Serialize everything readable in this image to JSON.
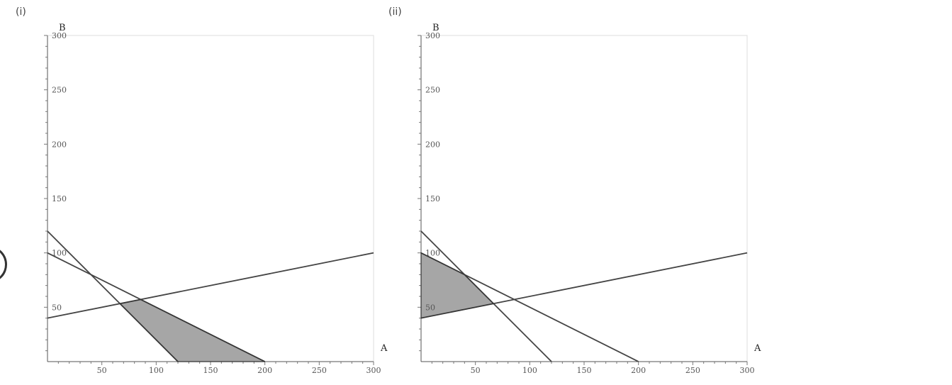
{
  "panels": [
    {
      "label": "(i)"
    },
    {
      "label": "(ii)"
    }
  ],
  "chart_data": [
    {
      "type": "line",
      "xlabel": "A",
      "ylabel": "B",
      "xlim": [
        0,
        300
      ],
      "ylim": [
        0,
        300
      ],
      "x_ticks": [
        50,
        100,
        150,
        200,
        250,
        300
      ],
      "y_ticks": [
        50,
        100,
        150,
        200,
        250,
        300
      ],
      "series": [
        {
          "x": [
            0,
            120
          ],
          "y": [
            120,
            0
          ]
        },
        {
          "x": [
            0,
            200
          ],
          "y": [
            100,
            0
          ]
        },
        {
          "x": [
            0,
            300
          ],
          "y": [
            40,
            100
          ]
        }
      ],
      "shaded_region": {
        "x": [
          66.7,
          85.7,
          200,
          120
        ],
        "y": [
          53.3,
          57.1,
          0,
          0
        ]
      },
      "colors": {
        "line": "#444444",
        "fill": "#a6a6a6",
        "frame": "#dddddd"
      }
    },
    {
      "type": "line",
      "xlabel": "A",
      "ylabel": "B",
      "xlim": [
        0,
        300
      ],
      "ylim": [
        0,
        300
      ],
      "x_ticks": [
        50,
        100,
        150,
        200,
        250,
        300
      ],
      "y_ticks": [
        50,
        100,
        150,
        200,
        250,
        300
      ],
      "series": [
        {
          "x": [
            0,
            120
          ],
          "y": [
            120,
            0
          ]
        },
        {
          "x": [
            0,
            200
          ],
          "y": [
            100,
            0
          ]
        },
        {
          "x": [
            0,
            300
          ],
          "y": [
            40,
            100
          ]
        }
      ],
      "shaded_region": {
        "x": [
          0,
          0,
          40,
          66.7
        ],
        "y": [
          40,
          100,
          80,
          53.3
        ]
      },
      "colors": {
        "line": "#444444",
        "fill": "#a6a6a6",
        "frame": "#dddddd"
      }
    }
  ]
}
